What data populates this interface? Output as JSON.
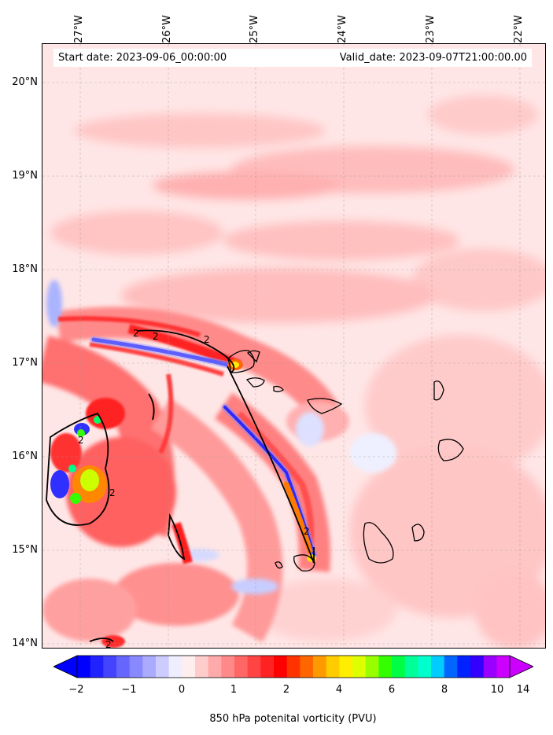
{
  "map": {
    "start_date": "Start date: 2023-09-06_00:00:00",
    "valid_date": "Valid_date: 2023-09-07T21:00:00.00",
    "lon_labels": [
      "27°W",
      "26°W",
      "25°W",
      "24°W",
      "23°W",
      "22°W"
    ],
    "lat_labels": [
      "20°N",
      "19°N",
      "18°N",
      "17°N",
      "16°N",
      "15°N",
      "14°N"
    ],
    "contour_label": "2",
    "colorbar": {
      "label": "850 hPa potenital vorticity (PVU)",
      "ticks": [
        "−2",
        "−1",
        "0",
        "1",
        "2",
        "4",
        "6",
        "8",
        "10",
        "14"
      ],
      "colors": [
        "#0000ff",
        "#2222ff",
        "#4444ff",
        "#6666ff",
        "#8888ff",
        "#aaaaff",
        "#ccccff",
        "#eeeeff",
        "#ffeeee",
        "#ffcccc",
        "#ffaaaa",
        "#ff8888",
        "#ff6666",
        "#ff4444",
        "#ff2222",
        "#ff0000",
        "#ff3300",
        "#ff6600",
        "#ff9900",
        "#ffcc00",
        "#ffee00",
        "#ddff00",
        "#99ff00",
        "#33ff00",
        "#00ff44",
        "#00ff99",
        "#00ffcc",
        "#00ccff",
        "#0066ff",
        "#0022ff",
        "#3300ff",
        "#9900ff",
        "#cc00ff"
      ],
      "under_color": "#0000ff",
      "over_color": "#cc00ff"
    }
  }
}
